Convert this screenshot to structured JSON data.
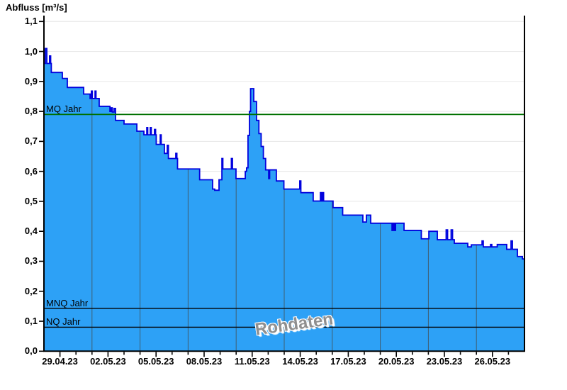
{
  "title": "Abfluss [m³/s]",
  "watermark": "Rohdaten",
  "colors": {
    "area_fill": "#2da1f6",
    "area_outline": "#0202dd",
    "mq_line": "#007000",
    "mnq_line": "#000000",
    "nq_line": "#000000",
    "h_grid": "#e6e6e6",
    "v_grid": "#3f5e70",
    "axis": "#000000",
    "watermark_text": "#8f8f8f"
  },
  "chart_data": {
    "type": "area",
    "title": "Abfluss [m³/s]",
    "ylabel": "Abfluss [m³/s]",
    "ylim": [
      0.0,
      1.1
    ],
    "y_tick_values": [
      0.0,
      0.1,
      0.2,
      0.3,
      0.4,
      0.5,
      0.6,
      0.7,
      0.8,
      0.9,
      1.0,
      1.1
    ],
    "y_tick_labels": [
      "0,0",
      "0,1",
      "0,2",
      "0,3",
      "0,4",
      "0,5",
      "0,6",
      "0,7",
      "0,8",
      "0,9",
      "1,0",
      "1,1"
    ],
    "x_tick_labels": [
      "29.04.23",
      "02.05.23",
      "05.05.23",
      "08.05.23",
      "11.05.23",
      "14.05.23",
      "17.05.23",
      "20.05.23",
      "23.05.23",
      "26.05.23"
    ],
    "x_tick_days": [
      1,
      4,
      7,
      10,
      13,
      16,
      19,
      22,
      25,
      28
    ],
    "x_minor_tick_step_days": 1,
    "x_range_days": 30,
    "grid_vertical_days": [
      3,
      6,
      9,
      12,
      15,
      18,
      21,
      24,
      27
    ],
    "grid_horizontal": true,
    "reference_lines": [
      {
        "label": "MQ Jahr",
        "value": 0.79,
        "color": "#007000"
      },
      {
        "label": "MNQ Jahr",
        "value": 0.143,
        "color": "#000000"
      },
      {
        "label": "NQ Jahr",
        "value": 0.08,
        "color": "#000000"
      }
    ],
    "series": [
      {
        "name": "Rohdaten",
        "unit": "m³/s",
        "interpolation": "step-after",
        "points": [
          [
            0.0,
            0.96
          ],
          [
            0.09,
            1.01
          ],
          [
            0.18,
            0.96
          ],
          [
            0.35,
            0.985
          ],
          [
            0.42,
            0.96
          ],
          [
            0.46,
            0.93
          ],
          [
            1.15,
            0.91
          ],
          [
            1.46,
            0.88
          ],
          [
            2.48,
            0.858
          ],
          [
            2.88,
            0.843
          ],
          [
            2.96,
            0.868
          ],
          [
            3.02,
            0.843
          ],
          [
            3.19,
            0.868
          ],
          [
            3.25,
            0.843
          ],
          [
            3.45,
            0.817
          ],
          [
            4.12,
            0.8
          ],
          [
            4.2,
            0.812
          ],
          [
            4.27,
            0.798
          ],
          [
            4.38,
            0.81
          ],
          [
            4.47,
            0.77
          ],
          [
            5.0,
            0.758
          ],
          [
            5.8,
            0.734
          ],
          [
            6.24,
            0.722
          ],
          [
            6.42,
            0.746
          ],
          [
            6.48,
            0.722
          ],
          [
            6.64,
            0.746
          ],
          [
            6.7,
            0.722
          ],
          [
            6.9,
            0.74
          ],
          [
            6.97,
            0.722
          ],
          [
            7.01,
            0.69
          ],
          [
            7.26,
            0.722
          ],
          [
            7.32,
            0.69
          ],
          [
            7.52,
            0.66
          ],
          [
            7.7,
            0.687
          ],
          [
            7.77,
            0.643
          ],
          [
            8.23,
            0.66
          ],
          [
            8.3,
            0.643
          ],
          [
            8.34,
            0.608
          ],
          [
            9.72,
            0.572
          ],
          [
            10.53,
            0.541
          ],
          [
            10.66,
            0.537
          ],
          [
            10.93,
            0.572
          ],
          [
            11.11,
            0.643
          ],
          [
            11.17,
            0.608
          ],
          [
            11.7,
            0.643
          ],
          [
            11.77,
            0.608
          ],
          [
            11.99,
            0.576
          ],
          [
            12.57,
            0.6
          ],
          [
            12.65,
            0.612
          ],
          [
            12.74,
            0.72
          ],
          [
            12.83,
            0.8
          ],
          [
            12.9,
            0.876
          ],
          [
            13.1,
            0.833
          ],
          [
            13.27,
            0.77
          ],
          [
            13.42,
            0.726
          ],
          [
            13.56,
            0.683
          ],
          [
            13.7,
            0.643
          ],
          [
            13.84,
            0.605
          ],
          [
            14.03,
            0.576
          ],
          [
            14.09,
            0.605
          ],
          [
            14.51,
            0.568
          ],
          [
            14.98,
            0.541
          ],
          [
            15.97,
            0.568
          ],
          [
            16.04,
            0.529
          ],
          [
            16.81,
            0.501
          ],
          [
            17.26,
            0.529
          ],
          [
            17.32,
            0.501
          ],
          [
            17.39,
            0.529
          ],
          [
            17.46,
            0.501
          ],
          [
            18.05,
            0.479
          ],
          [
            18.65,
            0.454
          ],
          [
            19.91,
            0.431
          ],
          [
            20.13,
            0.454
          ],
          [
            20.4,
            0.427
          ],
          [
            21.73,
            0.403
          ],
          [
            21.81,
            0.427
          ],
          [
            21.88,
            0.403
          ],
          [
            21.95,
            0.427
          ],
          [
            22.48,
            0.403
          ],
          [
            23.56,
            0.375
          ],
          [
            24.03,
            0.4
          ],
          [
            24.56,
            0.372
          ],
          [
            25.11,
            0.405
          ],
          [
            25.2,
            0.372
          ],
          [
            25.42,
            0.405
          ],
          [
            25.51,
            0.372
          ],
          [
            25.62,
            0.36
          ],
          [
            26.46,
            0.348
          ],
          [
            26.68,
            0.355
          ],
          [
            27.35,
            0.368
          ],
          [
            27.43,
            0.348
          ],
          [
            27.88,
            0.356
          ],
          [
            27.96,
            0.348
          ],
          [
            28.3,
            0.356
          ],
          [
            28.89,
            0.34
          ],
          [
            29.16,
            0.368
          ],
          [
            29.25,
            0.34
          ],
          [
            29.56,
            0.316
          ],
          [
            29.87,
            0.308
          ]
        ]
      }
    ]
  }
}
